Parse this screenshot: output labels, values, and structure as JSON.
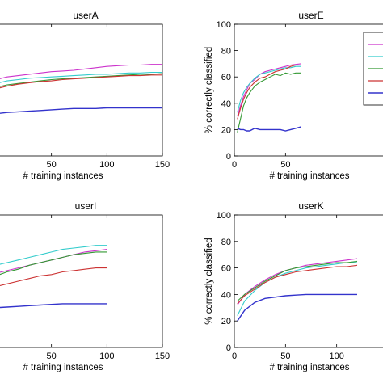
{
  "chart_data": [
    {
      "type": "line",
      "title": "userA",
      "xlabel": "# training instances",
      "ylabel": "",
      "xlim": [
        0,
        150
      ],
      "ylim": [
        0,
        100
      ],
      "xticks": [
        50,
        100,
        150
      ],
      "yticks": [],
      "grid": false,
      "series": [
        {
          "color": "#cc33cc",
          "x": [
            0,
            10,
            20,
            30,
            40,
            50,
            60,
            70,
            80,
            90,
            100,
            110,
            120,
            130,
            140,
            150
          ],
          "y": [
            58,
            60,
            61,
            62,
            63,
            64,
            64.5,
            65,
            66,
            67,
            68,
            68.5,
            69,
            69,
            69.5,
            69.5
          ]
        },
        {
          "color": "#33cccc",
          "x": [
            0,
            10,
            20,
            30,
            40,
            50,
            60,
            70,
            80,
            90,
            100,
            110,
            120,
            130,
            140,
            150
          ],
          "y": [
            55,
            57,
            58,
            59,
            59.5,
            60,
            60.5,
            61,
            61.5,
            62,
            62,
            62.5,
            63,
            63,
            63.5,
            63.5
          ]
        },
        {
          "color": "#339933",
          "x": [
            0,
            10,
            20,
            30,
            40,
            50,
            60,
            70,
            80,
            90,
            100,
            110,
            120,
            130,
            140,
            150
          ],
          "y": [
            52,
            54,
            55,
            56,
            57,
            58,
            58.5,
            59,
            59.5,
            60,
            60.5,
            61,
            61.5,
            62,
            62,
            62.5
          ]
        },
        {
          "color": "#cc3333",
          "x": [
            0,
            10,
            20,
            30,
            40,
            50,
            60,
            70,
            80,
            90,
            100,
            110,
            120,
            130,
            140,
            150
          ],
          "y": [
            51,
            53,
            54.5,
            55.5,
            56.5,
            57,
            58,
            58.5,
            59,
            59.5,
            60,
            60.5,
            61,
            61,
            61.5,
            61.5
          ]
        },
        {
          "color": "#3333cc",
          "x": [
            0,
            10,
            20,
            30,
            40,
            50,
            60,
            70,
            80,
            90,
            100,
            110,
            120,
            130,
            140,
            150
          ],
          "y": [
            32,
            33,
            33.5,
            34,
            34.5,
            35,
            35.5,
            36,
            36,
            36,
            36.5,
            36.5,
            36.5,
            36.5,
            36.5,
            36.5
          ]
        }
      ]
    },
    {
      "type": "line",
      "title": "userE",
      "xlabel": "# training instances",
      "ylabel": "% correctly classified",
      "xlim": [
        0,
        150
      ],
      "ylim": [
        0,
        100
      ],
      "xticks": [
        0,
        50
      ],
      "yticks": [
        0,
        20,
        40,
        60,
        80,
        100
      ],
      "grid": false,
      "legend_position": "top-right",
      "series": [
        {
          "color": "#cc33cc",
          "x": [
            3,
            6,
            9,
            12,
            15,
            20,
            25,
            30,
            35,
            40,
            45,
            50,
            55,
            60,
            65
          ],
          "y": [
            30,
            38,
            45,
            50,
            55,
            58,
            62,
            64,
            65,
            66,
            67,
            68,
            69,
            69.5,
            70
          ]
        },
        {
          "color": "#33cccc",
          "x": [
            3,
            6,
            9,
            12,
            15,
            20,
            25,
            30,
            35,
            40,
            45,
            50,
            55,
            60,
            65
          ],
          "y": [
            33,
            42,
            48,
            52,
            55,
            59,
            62,
            63,
            64,
            65,
            66,
            67,
            67,
            68,
            68
          ]
        },
        {
          "color": "#339933",
          "x": [
            3,
            6,
            9,
            12,
            15,
            20,
            25,
            30,
            35,
            40,
            45,
            50,
            55,
            60,
            65
          ],
          "y": [
            18,
            28,
            38,
            44,
            48,
            53,
            56,
            58,
            60,
            62,
            61,
            63,
            62,
            63,
            63
          ]
        },
        {
          "color": "#cc3333",
          "x": [
            3,
            6,
            9,
            12,
            15,
            20,
            25,
            30,
            35,
            40,
            45,
            50,
            55,
            60,
            65
          ],
          "y": [
            28,
            36,
            43,
            48,
            52,
            56,
            59,
            60,
            62,
            64,
            65,
            66,
            68,
            69,
            69
          ]
        },
        {
          "color": "#3333cc",
          "x": [
            3,
            6,
            9,
            12,
            15,
            20,
            25,
            30,
            35,
            40,
            45,
            50,
            55,
            60,
            65
          ],
          "y": [
            21,
            20,
            20,
            19,
            19,
            21,
            20,
            20,
            20,
            20,
            20,
            19,
            20,
            21,
            22
          ]
        }
      ]
    },
    {
      "type": "line",
      "title": "userI",
      "xlabel": "# training instances",
      "ylabel": "",
      "xlim": [
        0,
        150
      ],
      "ylim": [
        0,
        100
      ],
      "xticks": [
        50,
        100,
        150
      ],
      "yticks": [],
      "grid": false,
      "series": [
        {
          "color": "#cc33cc",
          "x": [
            0,
            10,
            20,
            30,
            40,
            50,
            60,
            70,
            80,
            90,
            100
          ],
          "y": [
            56,
            58,
            60,
            62,
            64,
            66,
            68,
            70,
            72,
            73,
            74
          ]
        },
        {
          "color": "#33cccc",
          "x": [
            0,
            10,
            20,
            30,
            40,
            50,
            60,
            70,
            80,
            90,
            100
          ],
          "y": [
            62,
            64,
            66,
            68,
            70,
            72,
            74,
            75,
            76,
            77,
            77
          ]
        },
        {
          "color": "#339933",
          "x": [
            0,
            10,
            20,
            30,
            40,
            50,
            60,
            70,
            80,
            90,
            100
          ],
          "y": [
            54,
            57,
            59,
            62,
            64,
            66,
            68,
            70,
            71,
            72,
            72
          ]
        },
        {
          "color": "#cc3333",
          "x": [
            0,
            10,
            20,
            30,
            40,
            50,
            60,
            70,
            80,
            90,
            100
          ],
          "y": [
            46,
            48,
            50,
            52,
            54,
            55,
            57,
            58,
            59,
            60,
            60
          ]
        },
        {
          "color": "#3333cc",
          "x": [
            0,
            10,
            20,
            30,
            40,
            50,
            60,
            70,
            80,
            90,
            100
          ],
          "y": [
            30,
            30.5,
            31,
            31.5,
            32,
            32.5,
            33,
            33,
            33,
            33,
            33
          ]
        }
      ]
    },
    {
      "type": "line",
      "title": "userK",
      "xlabel": "# training instances",
      "ylabel": "% correctly classified",
      "xlim": [
        0,
        150
      ],
      "ylim": [
        0,
        100
      ],
      "xticks": [
        0,
        50,
        100
      ],
      "yticks": [
        0,
        20,
        40,
        60,
        80,
        100
      ],
      "grid": false,
      "series": [
        {
          "color": "#cc33cc",
          "x": [
            3,
            10,
            20,
            30,
            40,
            50,
            60,
            70,
            80,
            90,
            100,
            110,
            120
          ],
          "y": [
            32,
            40,
            46,
            51,
            55,
            58,
            60,
            62,
            63,
            64,
            65,
            66,
            67
          ]
        },
        {
          "color": "#33cccc",
          "x": [
            3,
            10,
            20,
            30,
            40,
            50,
            60,
            70,
            80,
            90,
            100,
            110,
            120
          ],
          "y": [
            24,
            35,
            43,
            49,
            53,
            56,
            58,
            60,
            61,
            62,
            63,
            64,
            64
          ]
        },
        {
          "color": "#339933",
          "x": [
            3,
            10,
            20,
            30,
            40,
            50,
            60,
            70,
            80,
            90,
            100,
            110,
            120
          ],
          "y": [
            35,
            40,
            45,
            50,
            54,
            58,
            60,
            61,
            62,
            63,
            64,
            64,
            65
          ]
        },
        {
          "color": "#cc3333",
          "x": [
            3,
            10,
            20,
            30,
            40,
            50,
            60,
            70,
            80,
            90,
            100,
            110,
            120
          ],
          "y": [
            33,
            39,
            44,
            49,
            53,
            55,
            57,
            58,
            59,
            60,
            61,
            61,
            62
          ]
        },
        {
          "color": "#3333cc",
          "x": [
            3,
            10,
            20,
            30,
            40,
            50,
            60,
            70,
            80,
            90,
            100,
            110,
            120
          ],
          "y": [
            20,
            28,
            34,
            37,
            38,
            39,
            39.5,
            40,
            40,
            40,
            40,
            40,
            40
          ]
        }
      ]
    }
  ]
}
